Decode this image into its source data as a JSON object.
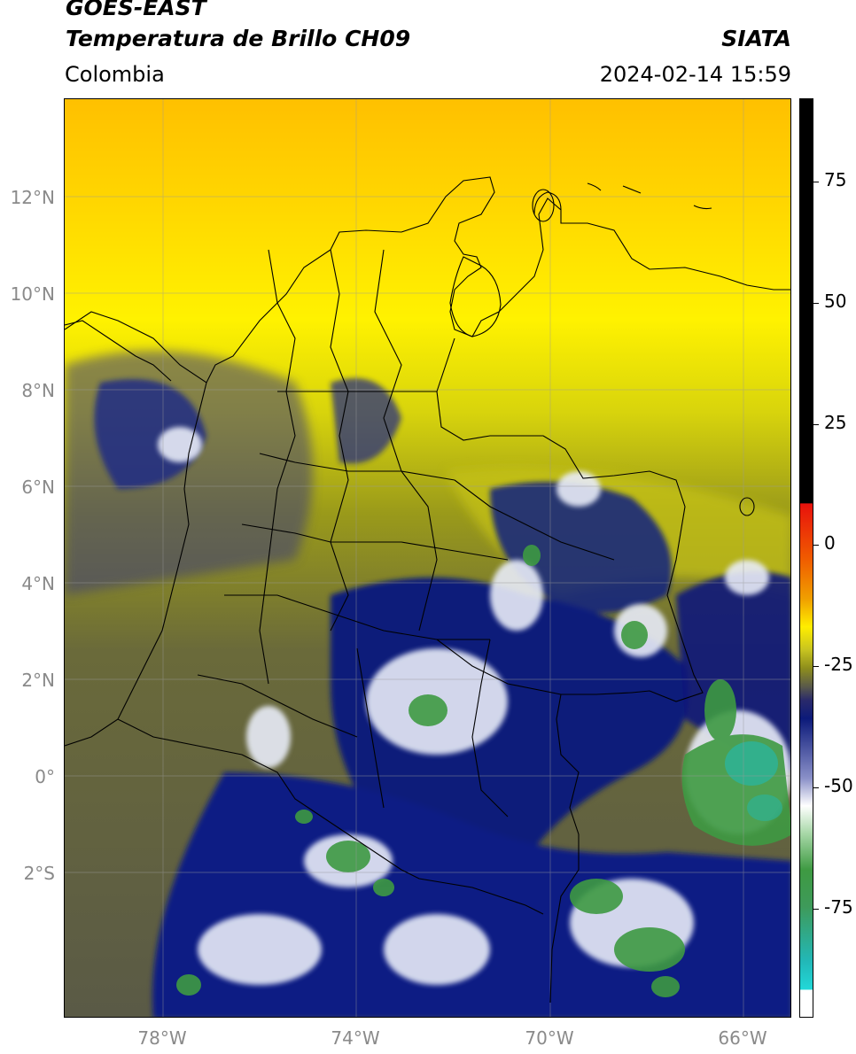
{
  "header": {
    "title_line1": "GOES-EAST",
    "title_line2": "Temperatura de Brillo CH09",
    "region": "Colombia",
    "agency": "SIATA",
    "datetime": "2024-02-14 15:59"
  },
  "map": {
    "lat_labels": [
      "12°N",
      "10°N",
      "8°N",
      "6°N",
      "4°N",
      "2°N",
      "0°",
      "2°S"
    ],
    "lon_labels": [
      "78°W",
      "74°W",
      "70°W",
      "66°W"
    ]
  },
  "colorbar": {
    "tick_labels": [
      "75",
      "50",
      "25",
      "0",
      "-25",
      "-50",
      "-75"
    ],
    "colors": {
      "black": "#000000",
      "red": "#e8120c",
      "orange": "#f08a00",
      "yellow": "#ffee00",
      "olive": "#8e8e1c",
      "gray": "#5a5a4a",
      "navy": "#0c1a7a",
      "white": "#ffffff",
      "green": "#3e9a42",
      "cyan": "#22d8d8"
    }
  }
}
